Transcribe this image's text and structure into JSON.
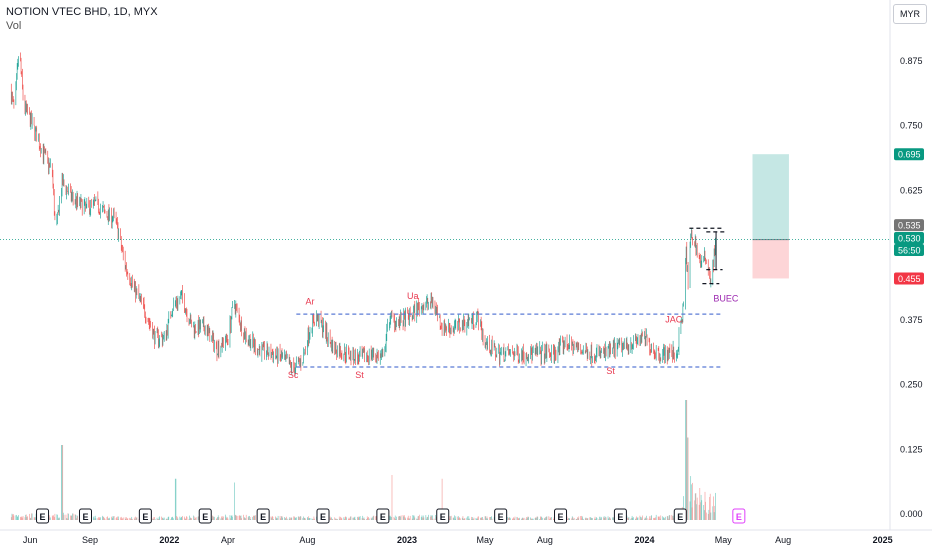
{
  "header": {
    "title": "NOTION VTEC BHD, 1D, MYX",
    "volume_label": "Vol",
    "currency_button": "MYR"
  },
  "chart_data": {
    "type": "candlestick",
    "symbol": "NOTION VTEC BHD",
    "interval": "1D",
    "exchange": "MYX",
    "price_axis": {
      "range": [
        -0.02,
        0.95
      ],
      "ticks": [
        0.875,
        0.75,
        0.625,
        0.375,
        0.25,
        0.125,
        0.0
      ],
      "tick_labels": [
        "0.875",
        "0.750",
        "0.625",
        "0.375",
        "0.250",
        "0.125",
        "0.000"
      ]
    },
    "time_axis": {
      "labels": [
        {
          "label": "Jun",
          "date": "2021-06-01",
          "bold": false
        },
        {
          "label": "Sep",
          "date": "2021-09-01",
          "bold": false
        },
        {
          "label": "2022",
          "date": "2022-01-01",
          "bold": true
        },
        {
          "label": "Apr",
          "date": "2022-04-01",
          "bold": false
        },
        {
          "label": "Aug",
          "date": "2022-08-01",
          "bold": false
        },
        {
          "label": "2023",
          "date": "2023-01-01",
          "bold": true
        },
        {
          "label": "May",
          "date": "2023-05-01",
          "bold": false
        },
        {
          "label": "Aug",
          "date": "2023-08-01",
          "bold": false
        },
        {
          "label": "2024",
          "date": "2024-01-01",
          "bold": true
        },
        {
          "label": "May",
          "date": "2024-05-01",
          "bold": false
        },
        {
          "label": "Aug",
          "date": "2024-08-01",
          "bold": false
        },
        {
          "label": "2025",
          "date": "2025-01-01",
          "bold": true
        }
      ]
    },
    "price_path": [
      [
        "2021-05-01",
        0.82
      ],
      [
        "2021-05-08",
        0.78
      ],
      [
        "2021-05-15",
        0.9
      ],
      [
        "2021-05-22",
        0.79
      ],
      [
        "2021-06-05",
        0.75
      ],
      [
        "2021-06-20",
        0.7
      ],
      [
        "2021-07-05",
        0.66
      ],
      [
        "2021-07-10",
        0.54
      ],
      [
        "2021-07-20",
        0.64
      ],
      [
        "2021-08-05",
        0.61
      ],
      [
        "2021-08-25",
        0.59
      ],
      [
        "2021-09-10",
        0.6
      ],
      [
        "2021-09-25",
        0.58
      ],
      [
        "2021-10-10",
        0.57
      ],
      [
        "2021-10-25",
        0.48
      ],
      [
        "2021-11-10",
        0.43
      ],
      [
        "2021-11-25",
        0.39
      ],
      [
        "2021-12-10",
        0.34
      ],
      [
        "2021-12-25",
        0.34
      ],
      [
        "2022-01-05",
        0.4
      ],
      [
        "2022-01-20",
        0.42
      ],
      [
        "2022-02-05",
        0.36
      ],
      [
        "2022-02-25",
        0.36
      ],
      [
        "2022-03-15",
        0.32
      ],
      [
        "2022-04-01",
        0.34
      ],
      [
        "2022-04-10",
        0.41
      ],
      [
        "2022-04-25",
        0.35
      ],
      [
        "2022-05-15",
        0.32
      ],
      [
        "2022-06-05",
        0.31
      ],
      [
        "2022-06-25",
        0.3
      ],
      [
        "2022-07-10",
        0.28
      ],
      [
        "2022-07-25",
        0.3
      ],
      [
        "2022-08-05",
        0.36
      ],
      [
        "2022-08-15",
        0.38
      ],
      [
        "2022-08-25",
        0.36
      ],
      [
        "2022-09-10",
        0.32
      ],
      [
        "2022-10-01",
        0.31
      ],
      [
        "2022-10-20",
        0.3
      ],
      [
        "2022-11-10",
        0.31
      ],
      [
        "2022-11-25",
        0.3
      ],
      [
        "2022-12-05",
        0.38
      ],
      [
        "2022-12-20",
        0.37
      ],
      [
        "2023-01-05",
        0.38
      ],
      [
        "2023-01-20",
        0.4
      ],
      [
        "2023-02-10",
        0.41
      ],
      [
        "2023-02-25",
        0.36
      ],
      [
        "2023-03-15",
        0.36
      ],
      [
        "2023-04-01",
        0.37
      ],
      [
        "2023-04-20",
        0.38
      ],
      [
        "2023-05-01",
        0.33
      ],
      [
        "2023-05-20",
        0.31
      ],
      [
        "2023-06-10",
        0.31
      ],
      [
        "2023-07-01",
        0.31
      ],
      [
        "2023-07-25",
        0.31
      ],
      [
        "2023-08-15",
        0.31
      ],
      [
        "2023-09-01",
        0.33
      ],
      [
        "2023-09-20",
        0.32
      ],
      [
        "2023-10-10",
        0.31
      ],
      [
        "2023-11-01",
        0.31
      ],
      [
        "2023-11-20",
        0.32
      ],
      [
        "2023-12-10",
        0.33
      ],
      [
        "2024-01-01",
        0.34
      ],
      [
        "2024-01-20",
        0.31
      ],
      [
        "2024-02-10",
        0.31
      ],
      [
        "2024-02-20",
        0.31
      ],
      [
        "2024-03-01",
        0.4
      ],
      [
        "2024-03-05",
        0.51
      ],
      [
        "2024-03-08",
        0.44
      ],
      [
        "2024-03-12",
        0.54
      ],
      [
        "2024-03-20",
        0.52
      ],
      [
        "2024-03-28",
        0.48
      ],
      [
        "2024-04-05",
        0.5
      ],
      [
        "2024-04-12",
        0.45
      ],
      [
        "2024-04-20",
        0.53
      ]
    ],
    "volume": {
      "baseline": [
        [
          "2021-05-01",
          0.07
        ],
        [
          "2021-06-15",
          0.06
        ],
        [
          "2021-07-20",
          0.07
        ],
        [
          "2021-09-01",
          0.04
        ],
        [
          "2021-12-01",
          0.03
        ],
        [
          "2022-04-01",
          0.05
        ],
        [
          "2022-09-01",
          0.03
        ],
        [
          "2023-02-01",
          0.05
        ],
        [
          "2023-06-01",
          0.03
        ],
        [
          "2023-12-01",
          0.04
        ],
        [
          "2024-02-20",
          0.05
        ],
        [
          "2024-03-10",
          0.45
        ],
        [
          "2024-03-20",
          0.3
        ],
        [
          "2024-04-20",
          0.25
        ]
      ],
      "spikes": [
        [
          "2021-07-20",
          1.0
        ],
        [
          "2022-01-10",
          0.55
        ],
        [
          "2022-04-10",
          0.5
        ],
        [
          "2022-12-10",
          0.6
        ],
        [
          "2023-02-25",
          0.55
        ],
        [
          "2024-03-05",
          1.6
        ],
        [
          "2024-03-08",
          1.1
        ]
      ]
    },
    "earnings_dates": [
      "2021-06-20",
      "2021-08-25",
      "2021-11-25",
      "2022-02-25",
      "2022-05-25",
      "2022-08-25",
      "2022-11-25",
      "2023-02-25",
      "2023-05-25",
      "2023-08-25",
      "2023-11-25",
      "2024-02-25"
    ],
    "future_earnings_date": "2024-05-25",
    "earnings_marker_label": "E",
    "levels": [
      {
        "from": "2022-07-15",
        "to": "2024-04-28",
        "price": 0.386,
        "style": "dashed"
      },
      {
        "from": "2022-07-15",
        "to": "2024-04-28",
        "price": 0.284,
        "style": "dashed"
      },
      {
        "from": "2024-03-10",
        "to": "2024-05-01",
        "price": 0.552,
        "style": "dashed"
      },
      {
        "from": "2024-04-05",
        "to": "2024-05-05",
        "price": 0.545,
        "style": "dashed"
      },
      {
        "from": "2024-04-05",
        "to": "2024-04-30",
        "price": 0.472,
        "style": "dashed"
      },
      {
        "from": "2024-03-30",
        "to": "2024-04-25",
        "price": 0.445,
        "style": "dashed"
      }
    ],
    "annotations": [
      {
        "text": "Ar",
        "date": "2022-08-05",
        "price": 0.405,
        "color": "#e8384f"
      },
      {
        "text": "Sc",
        "date": "2022-07-10",
        "price": 0.263,
        "color": "#e8384f"
      },
      {
        "text": "St",
        "date": "2022-10-20",
        "price": 0.263,
        "color": "#e8384f"
      },
      {
        "text": "Ua",
        "date": "2023-01-10",
        "price": 0.415,
        "color": "#e8384f"
      },
      {
        "text": "St",
        "date": "2023-11-10",
        "price": 0.27,
        "color": "#e8384f"
      },
      {
        "text": "JAC",
        "date": "2024-02-15",
        "price": 0.37,
        "color": "#e8384f"
      },
      {
        "text": "BUEC",
        "date": "2024-05-05",
        "price": 0.41,
        "color": "#9c27b0"
      }
    ],
    "position": {
      "from": "2024-06-15",
      "to": "2024-08-10",
      "entry": 0.53,
      "target": 0.695,
      "stop": 0.455
    },
    "last_price_line": 0.53,
    "price_labels": [
      {
        "text": "0.695",
        "price": 0.695,
        "bg": "#089981",
        "fg": "#ffffff"
      },
      {
        "text": "0.535",
        "price": 0.558,
        "bg": "#757575",
        "fg": "#ffffff"
      },
      {
        "text": "0.530",
        "price": 0.533,
        "bg": "#089981",
        "fg": "#ffffff"
      },
      {
        "text": "56:50",
        "price": 0.51,
        "bg": "#089981",
        "fg": "#ffffff"
      },
      {
        "text": "0.455",
        "price": 0.455,
        "bg": "#f23645",
        "fg": "#ffffff"
      }
    ],
    "colors": {
      "up": "#26a69a",
      "down": "#ef5350",
      "level_line": "#5b7bd5",
      "black_dashed": "#131722",
      "target_zone": "#b2dfdb",
      "stop_zone": "#fccbcd",
      "last_price": "#089981"
    }
  }
}
